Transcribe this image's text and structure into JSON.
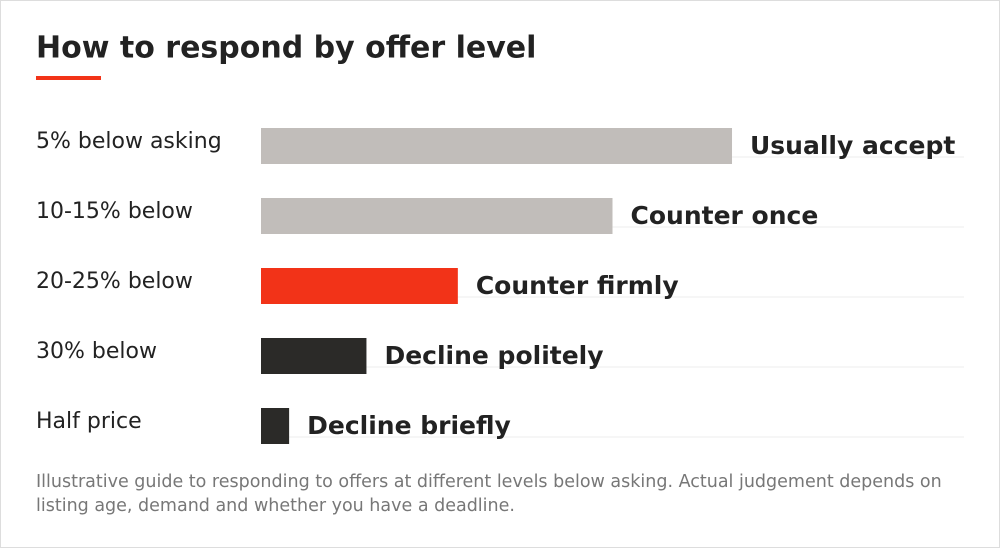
{
  "chart_data": {
    "type": "bar",
    "orientation": "horizontal",
    "title": "How to respond by offer level",
    "categories": [
      "5% below asking",
      "10-15% below",
      "20-25% below",
      "30% below",
      "Half price"
    ],
    "values": [
      67,
      50,
      28,
      15,
      4
    ],
    "value_labels": [
      "Usually accept",
      "Counter once",
      "Counter firmly",
      "Decline politely",
      "Decline briefly"
    ],
    "colors": [
      "#c1bdba",
      "#c1bdba",
      "#f23318",
      "#2b2a28",
      "#2b2a28"
    ],
    "xlim": [
      0,
      100
    ],
    "note": "Illustrative guide to responding to offers at different levels below asking. Actual judgement depends on listing age, demand and whether you have a deadline."
  }
}
